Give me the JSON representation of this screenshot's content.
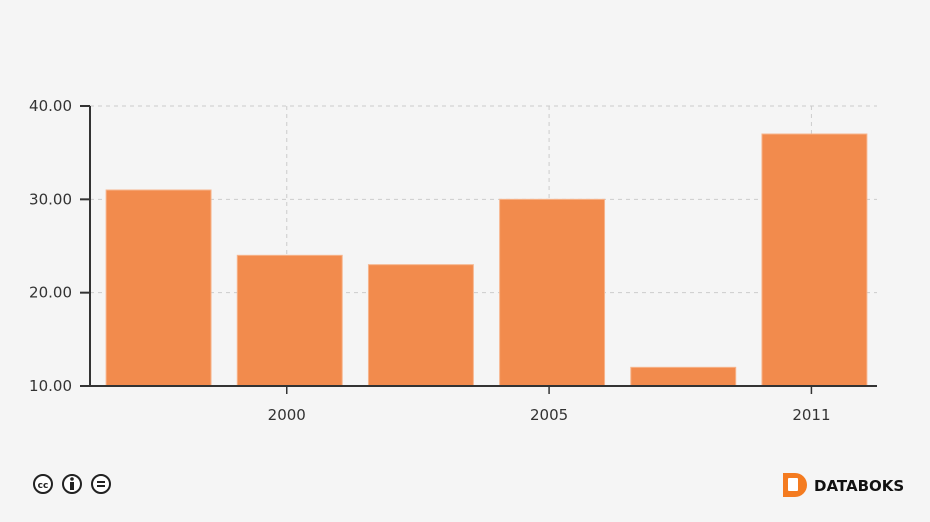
{
  "chart_data": {
    "type": "bar",
    "title": "",
    "xlabel": "",
    "ylabel": "",
    "categories": [
      "",
      "2000",
      "",
      "2005",
      "",
      "2011"
    ],
    "values": [
      31,
      24,
      23,
      30,
      12,
      37
    ],
    "ylim": [
      10,
      40
    ],
    "yticks": [
      "10.00",
      "20.00",
      "30.00",
      "40.00"
    ],
    "grid": true,
    "bar_color": "#f28b4d"
  },
  "footer": {
    "license_icons": [
      "cc-icon",
      "attribution-icon",
      "no-derivatives-icon"
    ],
    "brand": "DATABOKS",
    "brand_color": "#f47b20"
  }
}
